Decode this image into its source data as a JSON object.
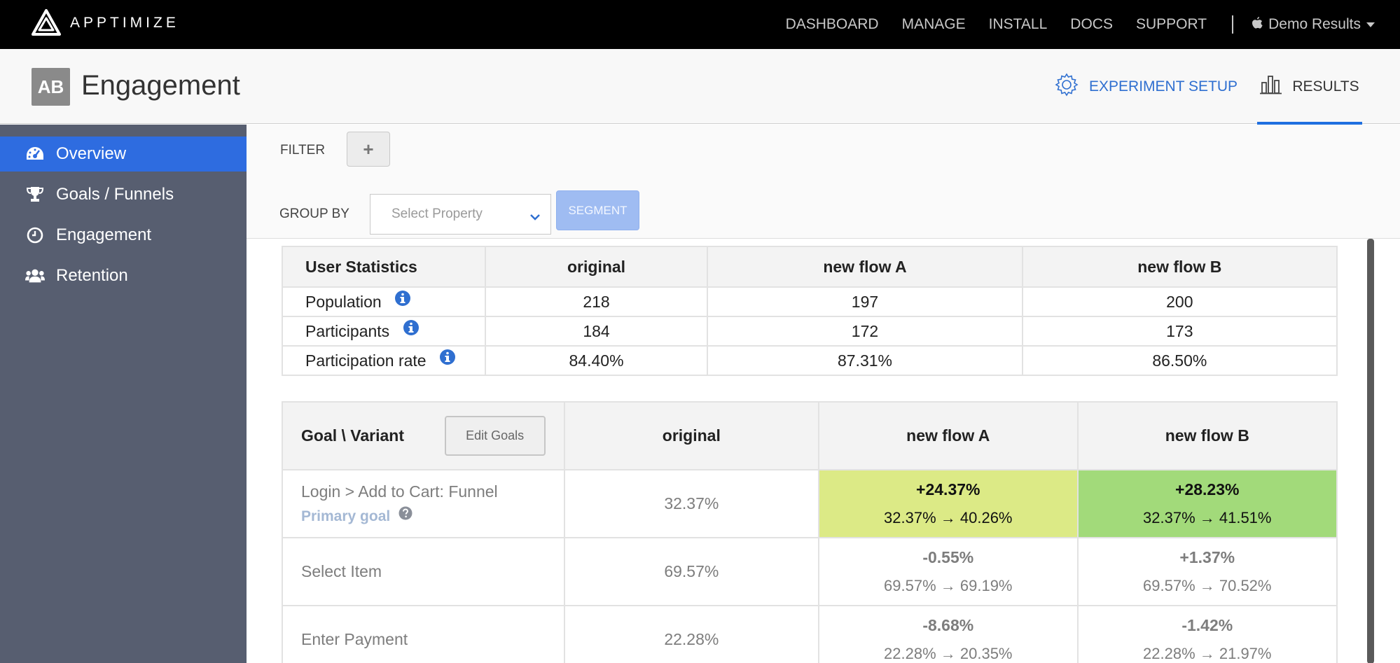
{
  "brand": {
    "name": "APPTIMIZE"
  },
  "topnav": {
    "links": [
      "DASHBOARD",
      "MANAGE",
      "INSTALL",
      "DOCS",
      "SUPPORT"
    ],
    "account": "Demo Results"
  },
  "header": {
    "badge": "AB",
    "title": "Engagement",
    "tab_setup": "EXPERIMENT SETUP",
    "tab_results": "RESULTS"
  },
  "sidebar": {
    "items": [
      {
        "label": "Overview",
        "icon": "dashboard-icon",
        "active": true
      },
      {
        "label": "Goals / Funnels",
        "icon": "trophy-icon",
        "active": false
      },
      {
        "label": "Engagement",
        "icon": "clock-icon",
        "active": false
      },
      {
        "label": "Retention",
        "icon": "users-icon",
        "active": false
      }
    ]
  },
  "controls": {
    "filter_label": "FILTER",
    "filter_add": "+",
    "group_by_label": "GROUP BY",
    "select_placeholder": "Select Property",
    "segment_label": "SEGMENT"
  },
  "stats_table": {
    "headers": [
      "User Statistics",
      "original",
      "new flow A",
      "new flow B"
    ],
    "rows": [
      {
        "label": "Population",
        "values": [
          "218",
          "197",
          "200"
        ]
      },
      {
        "label": "Participants",
        "values": [
          "184",
          "172",
          "173"
        ]
      },
      {
        "label": "Participation rate",
        "values": [
          "84.40%",
          "87.31%",
          "86.50%"
        ]
      }
    ]
  },
  "goals_table": {
    "header_label": "Goal \\ Variant",
    "edit_button": "Edit Goals",
    "headers": [
      "original",
      "new flow A",
      "new flow B"
    ],
    "rows": [
      {
        "name": "Login > Add to Cart: Funnel",
        "sub": "Primary goal",
        "original": "32.37%",
        "a_delta": "+24.37%",
        "a_change": "32.37% → 40.26%",
        "b_delta": "+28.23%",
        "b_change": "32.37% → 41.51%"
      },
      {
        "name": "Select Item",
        "original": "69.57%",
        "a_delta": "-0.55%",
        "a_change": "69.57% → 69.19%",
        "b_delta": "+1.37%",
        "b_change": "69.57% → 70.52%"
      },
      {
        "name": "Enter Payment",
        "original": "22.28%",
        "a_delta": "-8.68%",
        "a_change": "22.28% → 20.35%",
        "b_delta": "-1.42%",
        "b_change": "22.28% → 21.97%"
      }
    ]
  },
  "colors": {
    "accent": "#2e6ce0",
    "sidebar": "#575e70",
    "highlight_a": "#dcea86",
    "highlight_b": "#a2da7a"
  }
}
